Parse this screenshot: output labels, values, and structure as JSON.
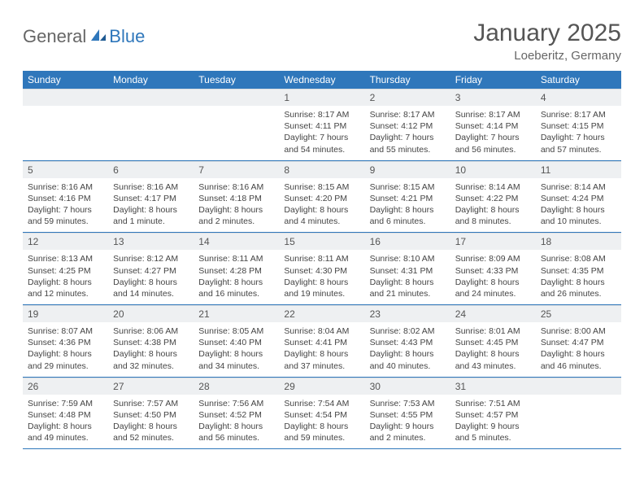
{
  "logo": {
    "text1": "General",
    "text2": "Blue"
  },
  "title": "January 2025",
  "location": "Loeberitz, Germany",
  "header_bg": "#2f77bb",
  "header_fg": "#ffffff",
  "daynum_bg": "#eef0f2",
  "border_color": "#2f77bb",
  "weekdays": [
    "Sunday",
    "Monday",
    "Tuesday",
    "Wednesday",
    "Thursday",
    "Friday",
    "Saturday"
  ],
  "weeks": [
    [
      null,
      null,
      null,
      {
        "n": "1",
        "sunrise": "8:17 AM",
        "sunset": "4:11 PM",
        "daylight": "7 hours and 54 minutes."
      },
      {
        "n": "2",
        "sunrise": "8:17 AM",
        "sunset": "4:12 PM",
        "daylight": "7 hours and 55 minutes."
      },
      {
        "n": "3",
        "sunrise": "8:17 AM",
        "sunset": "4:14 PM",
        "daylight": "7 hours and 56 minutes."
      },
      {
        "n": "4",
        "sunrise": "8:17 AM",
        "sunset": "4:15 PM",
        "daylight": "7 hours and 57 minutes."
      }
    ],
    [
      {
        "n": "5",
        "sunrise": "8:16 AM",
        "sunset": "4:16 PM",
        "daylight": "7 hours and 59 minutes."
      },
      {
        "n": "6",
        "sunrise": "8:16 AM",
        "sunset": "4:17 PM",
        "daylight": "8 hours and 1 minute."
      },
      {
        "n": "7",
        "sunrise": "8:16 AM",
        "sunset": "4:18 PM",
        "daylight": "8 hours and 2 minutes."
      },
      {
        "n": "8",
        "sunrise": "8:15 AM",
        "sunset": "4:20 PM",
        "daylight": "8 hours and 4 minutes."
      },
      {
        "n": "9",
        "sunrise": "8:15 AM",
        "sunset": "4:21 PM",
        "daylight": "8 hours and 6 minutes."
      },
      {
        "n": "10",
        "sunrise": "8:14 AM",
        "sunset": "4:22 PM",
        "daylight": "8 hours and 8 minutes."
      },
      {
        "n": "11",
        "sunrise": "8:14 AM",
        "sunset": "4:24 PM",
        "daylight": "8 hours and 10 minutes."
      }
    ],
    [
      {
        "n": "12",
        "sunrise": "8:13 AM",
        "sunset": "4:25 PM",
        "daylight": "8 hours and 12 minutes."
      },
      {
        "n": "13",
        "sunrise": "8:12 AM",
        "sunset": "4:27 PM",
        "daylight": "8 hours and 14 minutes."
      },
      {
        "n": "14",
        "sunrise": "8:11 AM",
        "sunset": "4:28 PM",
        "daylight": "8 hours and 16 minutes."
      },
      {
        "n": "15",
        "sunrise": "8:11 AM",
        "sunset": "4:30 PM",
        "daylight": "8 hours and 19 minutes."
      },
      {
        "n": "16",
        "sunrise": "8:10 AM",
        "sunset": "4:31 PM",
        "daylight": "8 hours and 21 minutes."
      },
      {
        "n": "17",
        "sunrise": "8:09 AM",
        "sunset": "4:33 PM",
        "daylight": "8 hours and 24 minutes."
      },
      {
        "n": "18",
        "sunrise": "8:08 AM",
        "sunset": "4:35 PM",
        "daylight": "8 hours and 26 minutes."
      }
    ],
    [
      {
        "n": "19",
        "sunrise": "8:07 AM",
        "sunset": "4:36 PM",
        "daylight": "8 hours and 29 minutes."
      },
      {
        "n": "20",
        "sunrise": "8:06 AM",
        "sunset": "4:38 PM",
        "daylight": "8 hours and 32 minutes."
      },
      {
        "n": "21",
        "sunrise": "8:05 AM",
        "sunset": "4:40 PM",
        "daylight": "8 hours and 34 minutes."
      },
      {
        "n": "22",
        "sunrise": "8:04 AM",
        "sunset": "4:41 PM",
        "daylight": "8 hours and 37 minutes."
      },
      {
        "n": "23",
        "sunrise": "8:02 AM",
        "sunset": "4:43 PM",
        "daylight": "8 hours and 40 minutes."
      },
      {
        "n": "24",
        "sunrise": "8:01 AM",
        "sunset": "4:45 PM",
        "daylight": "8 hours and 43 minutes."
      },
      {
        "n": "25",
        "sunrise": "8:00 AM",
        "sunset": "4:47 PM",
        "daylight": "8 hours and 46 minutes."
      }
    ],
    [
      {
        "n": "26",
        "sunrise": "7:59 AM",
        "sunset": "4:48 PM",
        "daylight": "8 hours and 49 minutes."
      },
      {
        "n": "27",
        "sunrise": "7:57 AM",
        "sunset": "4:50 PM",
        "daylight": "8 hours and 52 minutes."
      },
      {
        "n": "28",
        "sunrise": "7:56 AM",
        "sunset": "4:52 PM",
        "daylight": "8 hours and 56 minutes."
      },
      {
        "n": "29",
        "sunrise": "7:54 AM",
        "sunset": "4:54 PM",
        "daylight": "8 hours and 59 minutes."
      },
      {
        "n": "30",
        "sunrise": "7:53 AM",
        "sunset": "4:55 PM",
        "daylight": "9 hours and 2 minutes."
      },
      {
        "n": "31",
        "sunrise": "7:51 AM",
        "sunset": "4:57 PM",
        "daylight": "9 hours and 5 minutes."
      },
      null
    ]
  ],
  "labels": {
    "sunrise": "Sunrise:",
    "sunset": "Sunset:",
    "daylight": "Daylight:"
  }
}
